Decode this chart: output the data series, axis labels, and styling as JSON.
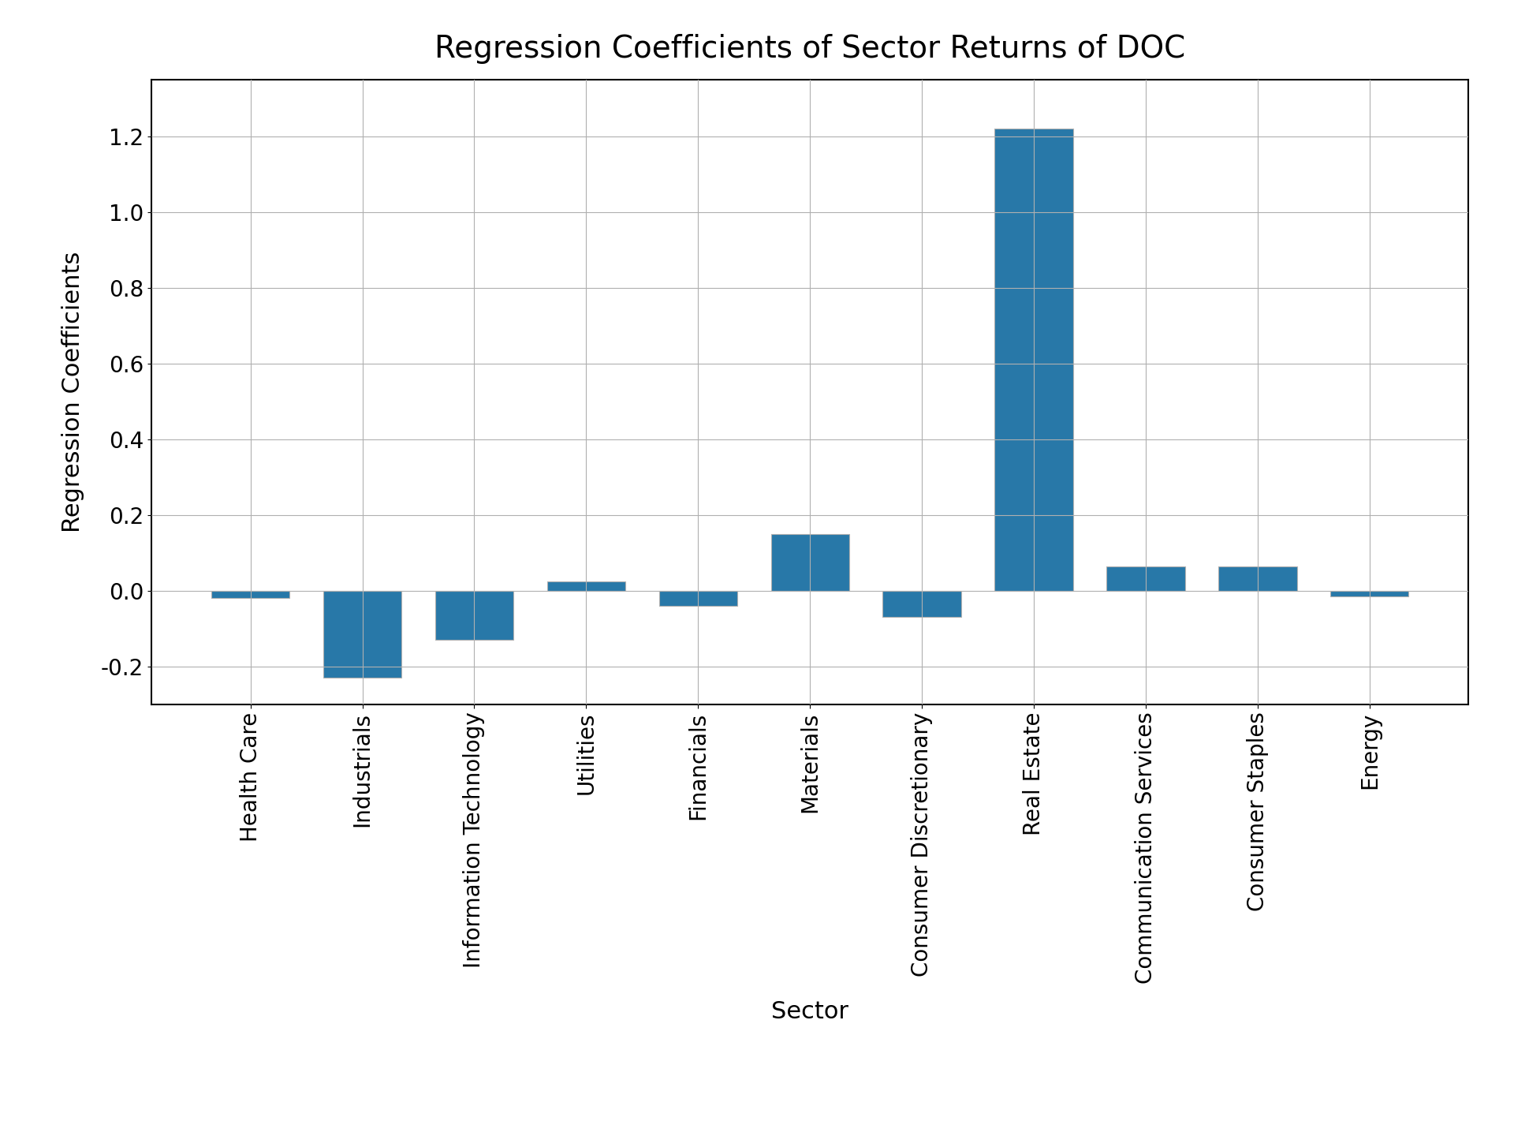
{
  "title": "Regression Coefficients of Sector Returns of DOC",
  "xlabel": "Sector",
  "ylabel": "Regression Coefficients",
  "categories": [
    "Health Care",
    "Industrials",
    "Information Technology",
    "Utilities",
    "Financials",
    "Materials",
    "Consumer Discretionary",
    "Real Estate",
    "Communication Services",
    "Consumer Staples",
    "Energy"
  ],
  "values": [
    -0.02,
    -0.23,
    -0.13,
    0.025,
    -0.04,
    0.15,
    -0.07,
    1.22,
    0.065,
    0.065,
    -0.015
  ],
  "bar_color": "#2878a8",
  "bar_edgecolor": "#b0b0b0",
  "background_color": "#ffffff",
  "grid_color": "#b0b0b0",
  "title_fontsize": 28,
  "label_fontsize": 22,
  "tick_fontsize": 20,
  "ylim": [
    -0.3,
    1.35
  ],
  "yticks": [
    -0.2,
    0.0,
    0.2,
    0.4,
    0.6,
    0.8,
    1.0,
    1.2
  ]
}
